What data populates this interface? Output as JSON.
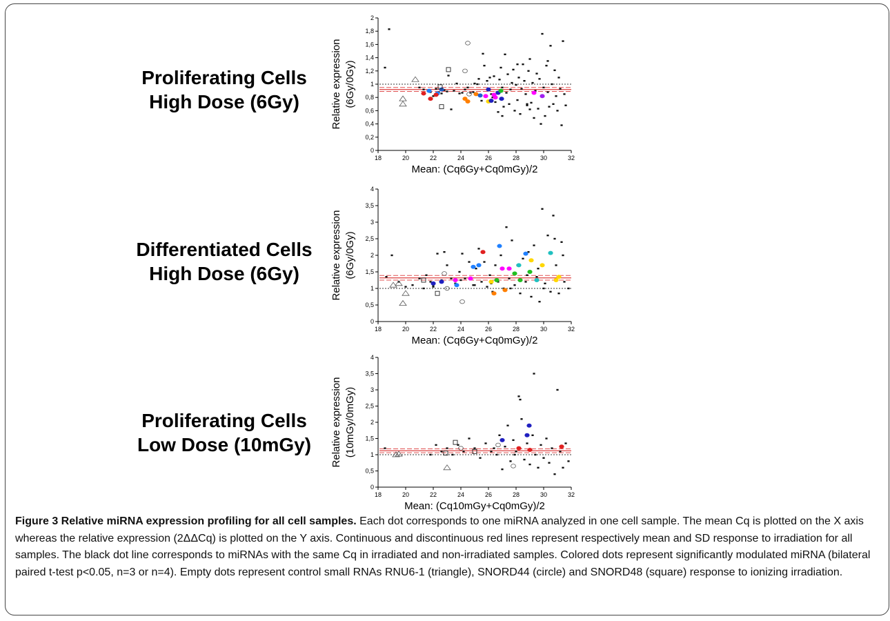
{
  "panels": [
    {
      "label_lines": [
        "Proliferating Cells",
        "High Dose (6Gy)"
      ]
    },
    {
      "label_lines": [
        "Differentiated Cells",
        "High Dose (6Gy)"
      ]
    },
    {
      "label_lines": [
        "Proliferating Cells",
        "Low Dose (10mGy)"
      ]
    }
  ],
  "caption": {
    "title": "Figure 3 Relative miRNA expression profiling for all cell samples.",
    "body": "Each dot corresponds to one miRNA analyzed in one cell sample. The mean Cq is plotted on the X axis whereas the relative expression (2ΔΔCq) is plotted on the Y axis. Continuous and discontinuous red lines represent respectively mean and SD response to irradiation for all samples. The black dot line corresponds to miRNAs with the same Cq in irradiated and non-irradiated samples. Colored dots represent significantly modulated miRNA (bilateral paired t-test p<0.05, n=3 or n=4). Empty dots represent control small RNAs RNU6-1 (triangle), SNORD44 (circle) and SNORD48 (square) response to ionizing irradiation."
  },
  "chart_data": [
    {
      "type": "scatter",
      "title": "",
      "xlabel": "Mean: (Cq6Gy+Cq0mGy)/2",
      "ylabel_lines": [
        "Relative expression",
        "(6Gy/0Gy)"
      ],
      "xlim": [
        18,
        32
      ],
      "ylim": [
        0,
        2
      ],
      "xticks": [
        18,
        20,
        22,
        24,
        26,
        28,
        30,
        32
      ],
      "yticks": [
        0,
        0.2,
        0.4,
        0.6,
        0.8,
        1,
        1.2,
        1.4,
        1.6,
        1.8,
        2
      ],
      "ytick_labels": [
        "0",
        "0,2",
        "0,4",
        "0,6",
        "0,8",
        "1",
        "1,2",
        "1,4",
        "1,6",
        "1,8",
        "2"
      ],
      "reference_line": 1,
      "mean_line": 0.92,
      "sd_lines": [
        0.89,
        0.95
      ],
      "colors": {
        "points": "#111111",
        "mean": "#e05050",
        "reference": "#333333"
      },
      "black_points": [
        [
          18.5,
          1.25
        ],
        [
          18.8,
          1.83
        ],
        [
          21.0,
          0.95
        ],
        [
          21.3,
          0.92
        ],
        [
          21.6,
          0.9
        ],
        [
          21.8,
          0.88
        ],
        [
          22.0,
          0.82
        ],
        [
          22.2,
          0.93
        ],
        [
          22.4,
          0.88
        ],
        [
          22.6,
          0.86
        ],
        [
          22.8,
          0.91
        ],
        [
          23.0,
          0.89
        ],
        [
          23.1,
          1.13
        ],
        [
          23.3,
          0.62
        ],
        [
          23.5,
          0.9
        ],
        [
          23.7,
          1.01
        ],
        [
          23.9,
          0.86
        ],
        [
          24.1,
          0.87
        ],
        [
          24.3,
          0.92
        ],
        [
          24.5,
          0.95
        ],
        [
          24.7,
          0.87
        ],
        [
          24.9,
          0.88
        ],
        [
          25.0,
          1.01
        ],
        [
          25.2,
          1.0
        ],
        [
          25.3,
          1.08
        ],
        [
          25.5,
          0.75
        ],
        [
          25.7,
          1.28
        ],
        [
          25.9,
          1.05
        ],
        [
          26.0,
          0.91
        ],
        [
          26.1,
          1.1
        ],
        [
          26.2,
          0.85
        ],
        [
          26.3,
          0.8
        ],
        [
          26.4,
          1.12
        ],
        [
          26.5,
          0.73
        ],
        [
          26.6,
          0.88
        ],
        [
          26.7,
          0.58
        ],
        [
          26.8,
          1.07
        ],
        [
          26.9,
          1.25
        ],
        [
          27.0,
          0.95
        ],
        [
          27.1,
          0.66
        ],
        [
          27.2,
          1.45
        ],
        [
          27.3,
          0.87
        ],
        [
          27.4,
          1.15
        ],
        [
          27.5,
          0.7
        ],
        [
          27.6,
          0.92
        ],
        [
          27.7,
          1.02
        ],
        [
          27.8,
          1.22
        ],
        [
          27.9,
          0.6
        ],
        [
          28.0,
          0.99
        ],
        [
          28.1,
          0.76
        ],
        [
          28.2,
          1.1
        ],
        [
          28.3,
          0.55
        ],
        [
          28.4,
          0.93
        ],
        [
          28.5,
          1.3
        ],
        [
          28.6,
          1.05
        ],
        [
          28.7,
          0.85
        ],
        [
          28.8,
          0.68
        ],
        [
          28.9,
          1.2
        ],
        [
          29.0,
          1.38
        ],
        [
          29.1,
          0.72
        ],
        [
          29.2,
          1.02
        ],
        [
          29.3,
          0.49
        ],
        [
          29.4,
          0.9
        ],
        [
          29.5,
          1.16
        ],
        [
          29.6,
          0.63
        ],
        [
          29.7,
          1.08
        ],
        [
          29.8,
          0.4
        ],
        [
          29.9,
          1.76
        ],
        [
          30.0,
          0.95
        ],
        [
          30.1,
          0.52
        ],
        [
          30.2,
          1.28
        ],
        [
          30.3,
          0.88
        ],
        [
          30.4,
          0.66
        ],
        [
          30.5,
          1.58
        ],
        [
          30.6,
          1.0
        ],
        [
          30.7,
          0.7
        ],
        [
          30.8,
          1.21
        ],
        [
          30.9,
          0.82
        ],
        [
          31.0,
          0.6
        ],
        [
          31.1,
          1.1
        ],
        [
          31.2,
          0.93
        ],
        [
          31.3,
          0.38
        ],
        [
          31.4,
          1.65
        ],
        [
          31.5,
          0.85
        ],
        [
          31.6,
          0.68
        ],
        [
          25.6,
          1.46
        ],
        [
          27.0,
          0.52
        ],
        [
          28.8,
          0.7
        ],
        [
          30.3,
          1.35
        ],
        [
          29.0,
          0.62
        ],
        [
          28.1,
          1.3
        ]
      ],
      "colored_points": [
        [
          21.3,
          0.86,
          "#e02020"
        ],
        [
          21.8,
          0.78,
          "#e02020"
        ],
        [
          21.7,
          0.9,
          "#2080ff"
        ],
        [
          22.3,
          0.86,
          "#2080ff"
        ],
        [
          22.6,
          0.92,
          "#2060d0"
        ],
        [
          22.2,
          0.84,
          "#e02020"
        ],
        [
          24.3,
          0.78,
          "#ff7f00"
        ],
        [
          24.5,
          0.74,
          "#ff7f00"
        ],
        [
          25.1,
          0.85,
          "#ff7f00"
        ],
        [
          25.4,
          0.83,
          "#2060d0"
        ],
        [
          25.8,
          0.82,
          "#ff00ff"
        ],
        [
          26.0,
          0.92,
          "#2020c0"
        ],
        [
          26.0,
          0.74,
          "#ffd700"
        ],
        [
          26.2,
          0.75,
          "#2020c0"
        ],
        [
          26.4,
          0.84,
          "#ff00ff"
        ],
        [
          26.5,
          0.8,
          "#ff00ff"
        ],
        [
          26.7,
          0.87,
          "#2020c0"
        ],
        [
          26.9,
          0.9,
          "#20c020"
        ],
        [
          26.95,
          0.78,
          "#2020c0"
        ],
        [
          29.3,
          0.87,
          "#ff00ff"
        ],
        [
          29.9,
          0.82,
          "#a020f0"
        ]
      ],
      "triangles": [
        [
          19.8,
          0.78
        ],
        [
          19.8,
          0.7
        ],
        [
          20.7,
          1.07
        ]
      ],
      "circles": [
        [
          24.3,
          1.2
        ],
        [
          24.5,
          1.62
        ],
        [
          24.6,
          0.85
        ]
      ],
      "squares": [
        [
          22.5,
          0.96
        ],
        [
          22.6,
          0.66
        ],
        [
          23.1,
          1.22
        ]
      ]
    },
    {
      "type": "scatter",
      "title": "",
      "xlabel": "Mean: (Cq6Gy+Cq0mGy)/2",
      "ylabel_lines": [
        "Relative expression",
        "(6Gy/0Gy)"
      ],
      "xlim": [
        18,
        32
      ],
      "ylim": [
        0,
        4
      ],
      "xticks": [
        18,
        20,
        22,
        24,
        26,
        28,
        30,
        32
      ],
      "yticks": [
        0,
        0.5,
        1,
        1.5,
        2,
        2.5,
        3,
        3.5,
        4
      ],
      "ytick_labels": [
        "0",
        "0,5",
        "1",
        "1,5",
        "2",
        "2,5",
        "3",
        "3,5",
        "4"
      ],
      "reference_line": 1,
      "mean_line": 1.32,
      "sd_lines": [
        1.25,
        1.39
      ],
      "colors": {
        "points": "#111111",
        "mean": "#e05050",
        "reference": "#333333"
      },
      "black_points": [
        [
          18.6,
          1.35
        ],
        [
          19.0,
          2.0
        ],
        [
          19.5,
          1.2
        ],
        [
          20.0,
          1.05
        ],
        [
          20.5,
          1.1
        ],
        [
          21.0,
          1.3
        ],
        [
          21.3,
          1.0
        ],
        [
          21.5,
          1.4
        ],
        [
          21.8,
          1.2
        ],
        [
          22.0,
          1.1
        ],
        [
          22.3,
          2.05
        ],
        [
          22.6,
          1.25
        ],
        [
          22.8,
          2.1
        ],
        [
          23.0,
          1.7
        ],
        [
          23.3,
          1.3
        ],
        [
          23.6,
          1.15
        ],
        [
          23.9,
          1.5
        ],
        [
          24.1,
          2.05
        ],
        [
          24.3,
          1.3
        ],
        [
          24.6,
          1.8
        ],
        [
          24.9,
          1.1
        ],
        [
          25.1,
          1.6
        ],
        [
          25.3,
          2.2
        ],
        [
          25.5,
          1.2
        ],
        [
          25.7,
          1.8
        ],
        [
          25.9,
          1.05
        ],
        [
          26.1,
          1.4
        ],
        [
          26.3,
          0.9
        ],
        [
          26.5,
          1.7
        ],
        [
          26.7,
          1.2
        ],
        [
          26.9,
          2.0
        ],
        [
          27.1,
          1.0
        ],
        [
          27.3,
          2.85
        ],
        [
          27.5,
          1.3
        ],
        [
          27.7,
          2.45
        ],
        [
          27.9,
          1.1
        ],
        [
          28.1,
          1.7
        ],
        [
          28.3,
          0.85
        ],
        [
          28.5,
          1.9
        ],
        [
          28.7,
          1.2
        ],
        [
          28.9,
          2.1
        ],
        [
          29.1,
          0.75
        ],
        [
          29.3,
          2.3
        ],
        [
          29.5,
          1.35
        ],
        [
          29.7,
          0.6
        ],
        [
          29.9,
          3.4
        ],
        [
          30.1,
          1.15
        ],
        [
          30.3,
          2.6
        ],
        [
          30.5,
          0.9
        ],
        [
          30.7,
          3.2
        ],
        [
          30.9,
          1.7
        ],
        [
          31.1,
          0.85
        ],
        [
          31.3,
          2.4
        ],
        [
          31.5,
          1.2
        ],
        [
          31.8,
          1.0
        ],
        [
          26.2,
          1.15
        ],
        [
          27.6,
          1.0
        ],
        [
          28.8,
          1.4
        ],
        [
          30.0,
          1.0
        ],
        [
          25.0,
          1.1
        ],
        [
          24.0,
          1.25
        ],
        [
          22.0,
          1.05
        ],
        [
          29.6,
          1.6
        ],
        [
          30.8,
          2.5
        ],
        [
          31.4,
          2.0
        ]
      ],
      "colored_points": [
        [
          22.0,
          1.15,
          "#2020c0"
        ],
        [
          22.6,
          1.2,
          "#2020c0"
        ],
        [
          23.7,
          1.1,
          "#2080ff"
        ],
        [
          23.6,
          1.25,
          "#ff00ff"
        ],
        [
          24.7,
          1.3,
          "#ff00ff"
        ],
        [
          24.9,
          1.65,
          "#2080ff"
        ],
        [
          25.3,
          1.7,
          "#2080ff"
        ],
        [
          25.6,
          2.1,
          "#e02020"
        ],
        [
          26.4,
          0.85,
          "#ff7f00"
        ],
        [
          26.2,
          1.2,
          "#ffd700"
        ],
        [
          26.6,
          1.25,
          "#20c020"
        ],
        [
          26.8,
          2.28,
          "#2080ff"
        ],
        [
          27.0,
          1.6,
          "#ff00ff"
        ],
        [
          27.2,
          0.95,
          "#ff7f00"
        ],
        [
          27.5,
          1.6,
          "#ff00ff"
        ],
        [
          27.9,
          1.45,
          "#20c020"
        ],
        [
          28.2,
          1.7,
          "#20c0c0"
        ],
        [
          28.3,
          1.25,
          "#20c020"
        ],
        [
          28.7,
          2.05,
          "#2080ff"
        ],
        [
          29.0,
          1.5,
          "#20c020"
        ],
        [
          29.1,
          1.85,
          "#ffd700"
        ],
        [
          29.5,
          1.25,
          "#20c0c0"
        ],
        [
          29.9,
          1.7,
          "#ffd700"
        ],
        [
          30.5,
          2.07,
          "#20c0c0"
        ],
        [
          30.9,
          1.25,
          "#ffd700"
        ],
        [
          31.1,
          1.35,
          "#ffd700"
        ]
      ],
      "triangles": [
        [
          19.1,
          1.1
        ],
        [
          19.5,
          1.15
        ],
        [
          19.8,
          0.55
        ],
        [
          20.0,
          0.85
        ]
      ],
      "circles": [
        [
          22.8,
          1.45
        ],
        [
          24.1,
          0.6
        ],
        [
          23.0,
          1.0
        ]
      ],
      "squares": [
        [
          21.3,
          1.25
        ],
        [
          22.3,
          0.85
        ]
      ]
    },
    {
      "type": "scatter",
      "title": "",
      "xlabel": "Mean: (Cq10mGy+Cq0mGy)/2",
      "ylabel_lines": [
        "Relative expression",
        "(10mGy/0mGy)"
      ],
      "xlim": [
        18,
        32
      ],
      "ylim": [
        0,
        4
      ],
      "xticks": [
        18,
        20,
        22,
        24,
        26,
        28,
        30,
        32
      ],
      "yticks": [
        0,
        0.5,
        1,
        1.5,
        2,
        2.5,
        3,
        3.5,
        4
      ],
      "ytick_labels": [
        "0",
        "0,5",
        "1",
        "1,5",
        "2",
        "2,5",
        "3",
        "3,5",
        "4"
      ],
      "reference_line": 1,
      "mean_line": 1.12,
      "sd_lines": [
        1.06,
        1.18
      ],
      "colors": {
        "points": "#111111",
        "mean": "#e05050",
        "reference": "#333333"
      },
      "black_points": [
        [
          18.5,
          1.2
        ],
        [
          21.8,
          1.0
        ],
        [
          22.2,
          1.3
        ],
        [
          22.6,
          1.1
        ],
        [
          23.0,
          1.2
        ],
        [
          23.4,
          1.0
        ],
        [
          23.8,
          1.3
        ],
        [
          24.2,
          1.1
        ],
        [
          24.6,
          1.5
        ],
        [
          25.0,
          1.2
        ],
        [
          25.4,
          0.9
        ],
        [
          25.8,
          1.35
        ],
        [
          26.2,
          1.1
        ],
        [
          26.6,
          1.0
        ],
        [
          26.8,
          1.6
        ],
        [
          27.0,
          0.55
        ],
        [
          27.2,
          1.25
        ],
        [
          27.4,
          1.9
        ],
        [
          27.6,
          0.8
        ],
        [
          27.8,
          1.45
        ],
        [
          28.0,
          1.1
        ],
        [
          28.2,
          2.8
        ],
        [
          28.4,
          2.1
        ],
        [
          28.6,
          0.85
        ],
        [
          28.8,
          1.35
        ],
        [
          29.0,
          0.7
        ],
        [
          29.2,
          1.6
        ],
        [
          29.4,
          1.0
        ],
        [
          29.6,
          0.6
        ],
        [
          29.8,
          1.3
        ],
        [
          30.0,
          0.9
        ],
        [
          30.2,
          1.5
        ],
        [
          30.4,
          0.75
        ],
        [
          30.6,
          1.2
        ],
        [
          30.8,
          0.4
        ],
        [
          31.0,
          3.0
        ],
        [
          31.2,
          1.1
        ],
        [
          31.4,
          0.6
        ],
        [
          31.6,
          1.35
        ],
        [
          31.8,
          0.8
        ],
        [
          29.3,
          3.5
        ],
        [
          28.3,
          2.7
        ],
        [
          26.4,
          1.2
        ],
        [
          27.9,
          1.0
        ]
      ],
      "colored_points": [
        [
          27.0,
          1.45,
          "#2020c0"
        ],
        [
          28.2,
          1.2,
          "#e02020"
        ],
        [
          28.8,
          1.6,
          "#2020c0"
        ],
        [
          28.95,
          1.9,
          "#2020c0"
        ],
        [
          29.0,
          1.15,
          "#e02020"
        ],
        [
          31.3,
          1.25,
          "#e02020"
        ]
      ],
      "triangles": [
        [
          19.3,
          1.0
        ],
        [
          19.5,
          1.02
        ],
        [
          23.0,
          0.6
        ]
      ],
      "circles": [
        [
          24.0,
          1.2
        ],
        [
          26.7,
          1.3
        ],
        [
          27.8,
          0.65
        ]
      ],
      "squares": [
        [
          22.9,
          1.05
        ],
        [
          23.6,
          1.38
        ],
        [
          25.0,
          1.1
        ]
      ]
    }
  ]
}
